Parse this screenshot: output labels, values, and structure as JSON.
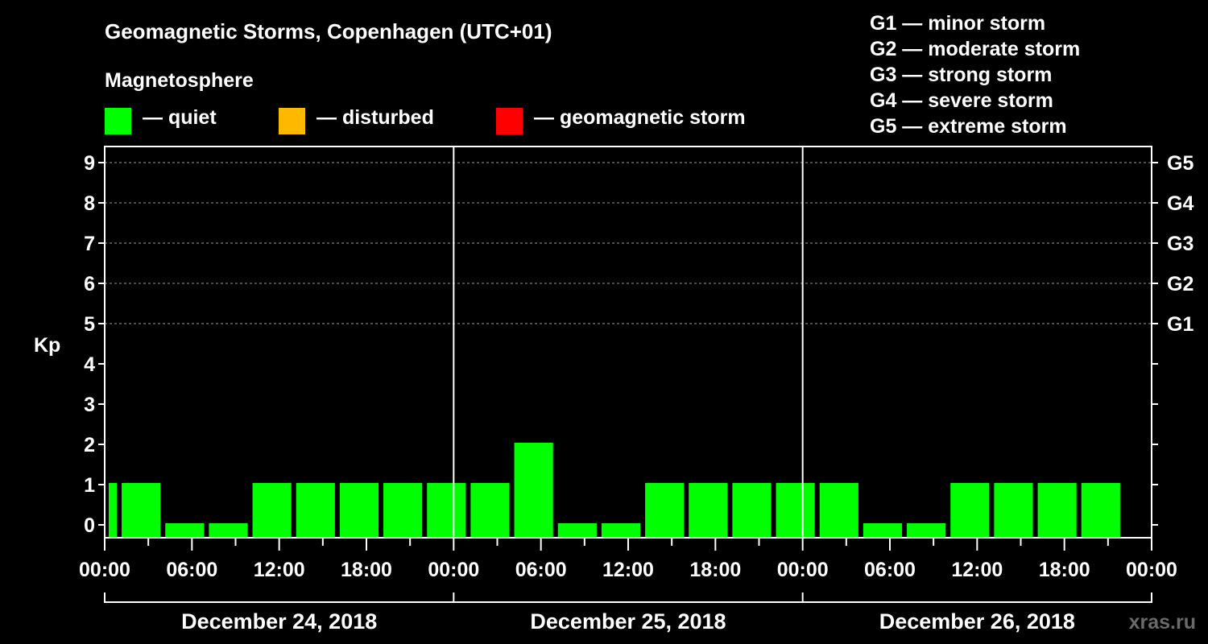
{
  "title": "Geomagnetic Storms, Copenhagen (UTC+01)",
  "legend": {
    "heading": "Magnetosphere",
    "items": [
      {
        "label": "— quiet",
        "color": "#00ff00"
      },
      {
        "label": "— disturbed",
        "color": "#ffb800"
      },
      {
        "label": "— geomagnetic storm",
        "color": "#ff0000"
      }
    ]
  },
  "storm_scale": [
    "G1 — minor storm",
    "G2 — moderate storm",
    "G3 — strong storm",
    "G4 — severe storm",
    "G5 — extreme storm"
  ],
  "watermark": "xras.ru",
  "chart_data": {
    "type": "bar",
    "ylabel": "Kp",
    "ylim": [
      0,
      9
    ],
    "yticks": [
      0,
      1,
      2,
      3,
      4,
      5,
      6,
      7,
      8,
      9
    ],
    "right_axis_labels": [
      {
        "kp": 5,
        "label": "G1"
      },
      {
        "kp": 6,
        "label": "G2"
      },
      {
        "kp": 7,
        "label": "G3"
      },
      {
        "kp": 8,
        "label": "G4"
      },
      {
        "kp": 9,
        "label": "G5"
      }
    ],
    "grid": "dashed horizontal at Kp 5-9",
    "x_range_hours": [
      0,
      72
    ],
    "x_tick_labels": [
      "00:00",
      "06:00",
      "12:00",
      "18:00",
      "00:00",
      "06:00",
      "12:00",
      "18:00",
      "00:00",
      "06:00",
      "12:00",
      "18:00",
      "00:00"
    ],
    "days": [
      "December 24, 2018",
      "December 25, 2018",
      "December 26, 2018"
    ],
    "bars": [
      {
        "start_hour": 0,
        "end_hour": 1,
        "kp": 1,
        "status": "quiet"
      },
      {
        "start_hour": 1,
        "end_hour": 4,
        "kp": 1,
        "status": "quiet"
      },
      {
        "start_hour": 4,
        "end_hour": 7,
        "kp": 0,
        "status": "quiet"
      },
      {
        "start_hour": 7,
        "end_hour": 10,
        "kp": 0,
        "status": "quiet"
      },
      {
        "start_hour": 10,
        "end_hour": 13,
        "kp": 1,
        "status": "quiet"
      },
      {
        "start_hour": 13,
        "end_hour": 16,
        "kp": 1,
        "status": "quiet"
      },
      {
        "start_hour": 16,
        "end_hour": 19,
        "kp": 1,
        "status": "quiet"
      },
      {
        "start_hour": 19,
        "end_hour": 22,
        "kp": 1,
        "status": "quiet"
      },
      {
        "start_hour": 22,
        "end_hour": 25,
        "kp": 1,
        "status": "quiet"
      },
      {
        "start_hour": 25,
        "end_hour": 28,
        "kp": 1,
        "status": "quiet"
      },
      {
        "start_hour": 28,
        "end_hour": 31,
        "kp": 2,
        "status": "quiet"
      },
      {
        "start_hour": 31,
        "end_hour": 34,
        "kp": 0,
        "status": "quiet"
      },
      {
        "start_hour": 34,
        "end_hour": 37,
        "kp": 0,
        "status": "quiet"
      },
      {
        "start_hour": 37,
        "end_hour": 40,
        "kp": 1,
        "status": "quiet"
      },
      {
        "start_hour": 40,
        "end_hour": 43,
        "kp": 1,
        "status": "quiet"
      },
      {
        "start_hour": 43,
        "end_hour": 46,
        "kp": 1,
        "status": "quiet"
      },
      {
        "start_hour": 46,
        "end_hour": 49,
        "kp": 1,
        "status": "quiet"
      },
      {
        "start_hour": 49,
        "end_hour": 52,
        "kp": 1,
        "status": "quiet"
      },
      {
        "start_hour": 52,
        "end_hour": 55,
        "kp": 0,
        "status": "quiet"
      },
      {
        "start_hour": 55,
        "end_hour": 58,
        "kp": 0,
        "status": "quiet"
      },
      {
        "start_hour": 58,
        "end_hour": 61,
        "kp": 1,
        "status": "quiet"
      },
      {
        "start_hour": 61,
        "end_hour": 64,
        "kp": 1,
        "status": "quiet"
      },
      {
        "start_hour": 64,
        "end_hour": 67,
        "kp": 1,
        "status": "quiet"
      },
      {
        "start_hour": 67,
        "end_hour": 70,
        "kp": 1,
        "status": "quiet"
      }
    ]
  }
}
